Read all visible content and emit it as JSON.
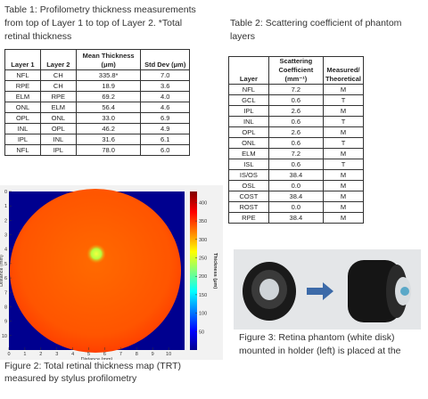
{
  "table1": {
    "caption": "Table 1: Profilometry thickness measurements from top of Layer 1 to top of Layer 2. *Total retinal thickness",
    "header": [
      "Layer 1",
      "Layer 2",
      "Mean Thickness (μm)",
      "Std Dev (μm)"
    ],
    "rows": [
      [
        "NFL",
        "CH",
        "335.8*",
        "7.0"
      ],
      [
        "RPE",
        "CH",
        "18.9",
        "3.6"
      ],
      [
        "ELM",
        "RPE",
        "69.2",
        "4.0"
      ],
      [
        "ONL",
        "ELM",
        "56.4",
        "4.6"
      ],
      [
        "OPL",
        "ONL",
        "33.0",
        "6.9"
      ],
      [
        "INL",
        "OPL",
        "46.2",
        "4.9"
      ],
      [
        "IPL",
        "INL",
        "31.6",
        "6.1"
      ],
      [
        "NFL",
        "IPL",
        "78.0",
        "6.0"
      ]
    ]
  },
  "table2": {
    "caption": "Table 2: Scattering coefficient of phantom layers",
    "header": [
      "Layer",
      "Scattering Coefficient (mm⁻¹)",
      "Measured/ Theoretical"
    ],
    "rows": [
      [
        "NFL",
        "7.2",
        "M"
      ],
      [
        "GCL",
        "0.6",
        "T"
      ],
      [
        "IPL",
        "2.6",
        "M"
      ],
      [
        "INL",
        "0.6",
        "T"
      ],
      [
        "OPL",
        "2.6",
        "M"
      ],
      [
        "ONL",
        "0.6",
        "T"
      ],
      [
        "ELM",
        "7.2",
        "M"
      ],
      [
        "ISL",
        "0.6",
        "T"
      ],
      [
        "IS/OS",
        "38.4",
        "M"
      ],
      [
        "OSL",
        "0.0",
        "M"
      ],
      [
        "COST",
        "38.4",
        "M"
      ],
      [
        "ROST",
        "0.0",
        "M"
      ],
      [
        "RPE",
        "38.4",
        "M"
      ]
    ]
  },
  "figure2": {
    "caption": "Figure 2: Total retinal thickness map (TRT) measured by stylus profilometry",
    "xlabel": "Distance (mm)",
    "ylabel": "Distance (mm)",
    "xlim": [
      0,
      11
    ],
    "ylim": [
      0,
      11
    ],
    "xticks": [
      0,
      1,
      2,
      3,
      4,
      5,
      6,
      7,
      8,
      9,
      10
    ],
    "yticks": [
      0,
      1,
      2,
      3,
      4,
      5,
      6,
      7,
      8,
      9,
      10
    ],
    "colorbar_label": "Thickness (μm)",
    "clim": [
      0,
      430
    ],
    "cticks": [
      50,
      100,
      150,
      200,
      250,
      300,
      350,
      400
    ]
  },
  "figure3": {
    "caption": "Figure 3: Retina phantom (white disk) mounted in holder (left) is placed at the"
  }
}
